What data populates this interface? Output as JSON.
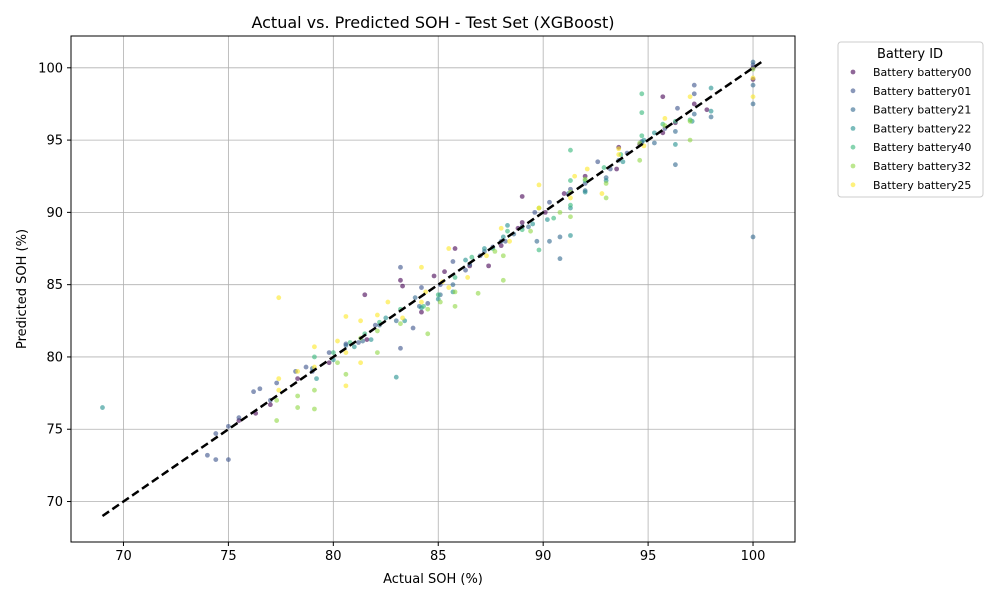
{
  "chart_data": {
    "type": "scatter",
    "title": "Actual vs. Predicted SOH - Test Set (XGBoost)",
    "xlabel": "Actual SOH (%)",
    "ylabel": "Predicted SOH (%)",
    "xlim": [
      67.5,
      102.0
    ],
    "ylim": [
      67.2,
      102.2
    ],
    "xticks": [
      70,
      75,
      80,
      85,
      90,
      95,
      100
    ],
    "yticks": [
      70,
      75,
      80,
      85,
      90,
      95,
      100
    ],
    "grid": true,
    "legend_title": "Battery ID",
    "legend_position": "outside-top-right",
    "reference_line": {
      "x": [
        69.0,
        100.5
      ],
      "y": [
        69.0,
        100.5
      ],
      "style": "dashed",
      "color": "#000000"
    },
    "series": [
      {
        "name": "Battery battery00",
        "color": "#440154",
        "points": [
          [
            75.5,
            75.6
          ],
          [
            76.3,
            76.1
          ],
          [
            77.0,
            76.7
          ],
          [
            78.3,
            78.5
          ],
          [
            79.8,
            79.6
          ],
          [
            81.5,
            84.3
          ],
          [
            81.6,
            81.2
          ],
          [
            83.2,
            85.3
          ],
          [
            83.3,
            84.9
          ],
          [
            84.2,
            83.1
          ],
          [
            84.8,
            85.6
          ],
          [
            85.3,
            85.9
          ],
          [
            85.8,
            87.5
          ],
          [
            86.5,
            86.3
          ],
          [
            87.4,
            86.3
          ],
          [
            88.0,
            87.7
          ],
          [
            88.8,
            88.9
          ],
          [
            89.0,
            91.1
          ],
          [
            89.0,
            89.3
          ],
          [
            90.1,
            90.0
          ],
          [
            91.0,
            91.3
          ],
          [
            92.0,
            92.5
          ],
          [
            93.5,
            93.0
          ],
          [
            93.6,
            94.5
          ],
          [
            94.6,
            94.7
          ],
          [
            95.7,
            98.0
          ],
          [
            95.7,
            95.5
          ],
          [
            96.3,
            96.2
          ],
          [
            97.2,
            97.5
          ],
          [
            97.8,
            97.1
          ],
          [
            100.0,
            100.0
          ],
          [
            100.0,
            99.2
          ]
        ]
      },
      {
        "name": "Battery battery01",
        "color": "#3b528b",
        "points": [
          [
            74.0,
            73.2
          ],
          [
            74.4,
            72.9
          ],
          [
            74.4,
            74.7
          ],
          [
            75.0,
            72.9
          ],
          [
            75.0,
            75.2
          ],
          [
            75.5,
            75.8
          ],
          [
            76.2,
            77.6
          ],
          [
            76.5,
            77.8
          ],
          [
            77.0,
            77.0
          ],
          [
            77.3,
            78.2
          ],
          [
            78.2,
            79.0
          ],
          [
            78.7,
            79.3
          ],
          [
            79.0,
            79.0
          ],
          [
            79.8,
            80.3
          ],
          [
            80.6,
            80.9
          ],
          [
            81.2,
            81.0
          ],
          [
            82.0,
            82.2
          ],
          [
            83.2,
            86.2
          ],
          [
            83.2,
            80.6
          ],
          [
            83.8,
            82.0
          ],
          [
            84.2,
            84.8
          ],
          [
            84.5,
            83.7
          ],
          [
            85.1,
            85.0
          ],
          [
            85.7,
            86.6
          ],
          [
            86.3,
            86.0
          ],
          [
            87.0,
            87.0
          ],
          [
            87.6,
            87.6
          ],
          [
            88.2,
            88.0
          ],
          [
            89.0,
            89.0
          ],
          [
            89.6,
            90.0
          ],
          [
            90.3,
            90.7
          ],
          [
            91.3,
            91.6
          ],
          [
            92.0,
            92.0
          ],
          [
            92.6,
            93.5
          ],
          [
            93.2,
            93.0
          ],
          [
            94.0,
            94.1
          ],
          [
            94.7,
            94.9
          ],
          [
            95.8,
            95.8
          ],
          [
            96.4,
            97.2
          ],
          [
            97.2,
            98.8
          ],
          [
            97.2,
            98.2
          ],
          [
            100.0,
            100.2
          ]
        ]
      },
      {
        "name": "Battery battery21",
        "color": "#31688e",
        "points": [
          [
            79.0,
            79.2
          ],
          [
            80.6,
            80.8
          ],
          [
            81.4,
            81.1
          ],
          [
            82.2,
            82.2
          ],
          [
            83.0,
            82.5
          ],
          [
            83.9,
            84.1
          ],
          [
            84.1,
            83.5
          ],
          [
            85.1,
            84.3
          ],
          [
            85.7,
            85.0
          ],
          [
            86.5,
            86.4
          ],
          [
            87.2,
            87.3
          ],
          [
            88.0,
            88.0
          ],
          [
            88.6,
            88.5
          ],
          [
            89.3,
            89.0
          ],
          [
            89.7,
            88.0
          ],
          [
            90.3,
            88.0
          ],
          [
            90.8,
            86.8
          ],
          [
            90.8,
            88.3
          ],
          [
            91.2,
            91.3
          ],
          [
            92.0,
            91.5
          ],
          [
            93.0,
            92.4
          ],
          [
            93.6,
            93.6
          ],
          [
            94.7,
            94.8
          ],
          [
            95.3,
            94.8
          ],
          [
            96.3,
            93.3
          ],
          [
            96.3,
            95.6
          ],
          [
            97.2,
            96.8
          ],
          [
            98.0,
            96.6
          ],
          [
            100.0,
            100.4
          ],
          [
            100.0,
            98.8
          ],
          [
            100.0,
            97.5
          ],
          [
            100.0,
            88.3
          ]
        ]
      },
      {
        "name": "Battery battery22",
        "color": "#21908d",
        "points": [
          [
            69.0,
            76.5
          ],
          [
            79.2,
            78.5
          ],
          [
            80.0,
            79.8
          ],
          [
            81.0,
            80.7
          ],
          [
            81.8,
            81.2
          ],
          [
            82.5,
            82.7
          ],
          [
            83.0,
            78.6
          ],
          [
            83.4,
            82.5
          ],
          [
            84.2,
            83.4
          ],
          [
            85.0,
            84.0
          ],
          [
            85.7,
            84.5
          ],
          [
            86.3,
            86.7
          ],
          [
            87.2,
            87.5
          ],
          [
            88.1,
            88.3
          ],
          [
            88.3,
            89.1
          ],
          [
            89.5,
            89.2
          ],
          [
            90.2,
            89.5
          ],
          [
            91.3,
            88.4
          ],
          [
            91.3,
            90.3
          ],
          [
            92.0,
            91.4
          ],
          [
            93.0,
            92.2
          ],
          [
            93.8,
            93.5
          ],
          [
            94.8,
            95.0
          ],
          [
            95.3,
            95.5
          ],
          [
            96.3,
            94.7
          ],
          [
            97.1,
            96.3
          ],
          [
            98.0,
            97.0
          ],
          [
            98.0,
            98.6
          ]
        ]
      },
      {
        "name": "Battery battery40",
        "color": "#35b779",
        "points": [
          [
            79.1,
            80.0
          ],
          [
            80.0,
            80.3
          ],
          [
            80.8,
            81.0
          ],
          [
            81.5,
            81.6
          ],
          [
            82.2,
            82.4
          ],
          [
            83.2,
            83.3
          ],
          [
            84.3,
            83.5
          ],
          [
            85.0,
            84.3
          ],
          [
            85.8,
            85.5
          ],
          [
            86.6,
            86.9
          ],
          [
            87.6,
            87.5
          ],
          [
            88.3,
            88.7
          ],
          [
            89.0,
            88.8
          ],
          [
            89.8,
            87.4
          ],
          [
            90.5,
            89.6
          ],
          [
            91.3,
            92.2
          ],
          [
            91.3,
            94.3
          ],
          [
            91.3,
            90.5
          ],
          [
            92.0,
            92.2
          ],
          [
            92.9,
            93.1
          ],
          [
            93.7,
            94.0
          ],
          [
            94.7,
            96.9
          ],
          [
            94.7,
            98.2
          ],
          [
            94.7,
            95.3
          ],
          [
            95.7,
            96.1
          ],
          [
            96.3,
            96.3
          ],
          [
            97.0,
            96.4
          ]
        ]
      },
      {
        "name": "Battery battery32",
        "color": "#8fd744",
        "points": [
          [
            77.3,
            75.6
          ],
          [
            77.3,
            77.0
          ],
          [
            78.3,
            76.5
          ],
          [
            78.3,
            77.3
          ],
          [
            79.1,
            76.4
          ],
          [
            79.1,
            77.7
          ],
          [
            80.2,
            79.6
          ],
          [
            80.6,
            78.8
          ],
          [
            81.3,
            81.3
          ],
          [
            82.1,
            80.3
          ],
          [
            82.1,
            81.8
          ],
          [
            83.2,
            82.3
          ],
          [
            84.5,
            81.6
          ],
          [
            84.5,
            83.3
          ],
          [
            85.1,
            83.8
          ],
          [
            85.8,
            83.5
          ],
          [
            85.8,
            84.5
          ],
          [
            86.9,
            84.4
          ],
          [
            87.7,
            87.3
          ],
          [
            88.1,
            85.3
          ],
          [
            88.1,
            87.0
          ],
          [
            89.4,
            88.7
          ],
          [
            89.8,
            90.3
          ],
          [
            90.8,
            90.0
          ],
          [
            91.3,
            89.7
          ],
          [
            91.3,
            91.4
          ],
          [
            92.0,
            92.3
          ],
          [
            93.0,
            91.0
          ],
          [
            93.0,
            92.0
          ],
          [
            94.6,
            93.6
          ],
          [
            94.6,
            94.8
          ],
          [
            95.8,
            96.0
          ],
          [
            97.0,
            95.0
          ],
          [
            97.0,
            96.3
          ],
          [
            100.0,
            99.9
          ]
        ]
      },
      {
        "name": "Battery battery25",
        "color": "#fde725",
        "points": [
          [
            77.4,
            84.1
          ],
          [
            77.4,
            77.7
          ],
          [
            77.4,
            78.5
          ],
          [
            78.3,
            79.0
          ],
          [
            79.1,
            80.7
          ],
          [
            79.1,
            79.3
          ],
          [
            80.2,
            81.1
          ],
          [
            80.6,
            78.0
          ],
          [
            80.6,
            82.8
          ],
          [
            80.6,
            80.3
          ],
          [
            81.3,
            82.5
          ],
          [
            81.3,
            79.6
          ],
          [
            82.1,
            82.9
          ],
          [
            82.6,
            83.8
          ],
          [
            83.3,
            82.7
          ],
          [
            84.2,
            83.8
          ],
          [
            84.2,
            86.2
          ],
          [
            84.4,
            84.5
          ],
          [
            85.2,
            85.2
          ],
          [
            85.5,
            87.5
          ],
          [
            85.5,
            84.8
          ],
          [
            86.4,
            85.5
          ],
          [
            87.3,
            87.0
          ],
          [
            88.0,
            88.9
          ],
          [
            88.4,
            88.0
          ],
          [
            89.8,
            91.9
          ],
          [
            89.8,
            90.3
          ],
          [
            91.3,
            91.0
          ],
          [
            91.5,
            92.5
          ],
          [
            92.1,
            93.0
          ],
          [
            92.8,
            91.3
          ],
          [
            93.6,
            94.0
          ],
          [
            93.6,
            94.4
          ],
          [
            94.8,
            94.6
          ],
          [
            95.8,
            96.5
          ],
          [
            97.0,
            98.0
          ],
          [
            100.0,
            98.0
          ],
          [
            100.0,
            99.3
          ]
        ]
      }
    ]
  }
}
